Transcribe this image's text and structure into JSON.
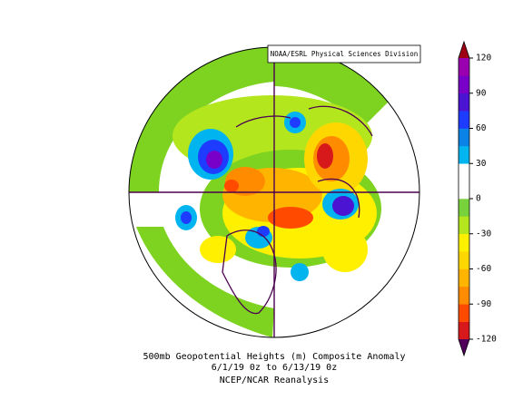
{
  "attribution": "NOAA/ESRL Physical Sciences Division",
  "caption": {
    "line1": "500mb Geopotential Heights (m)   Composite Anomaly",
    "line2": "6/1/19 0z  to 6/13/19 0z",
    "line3": "NCEP/NCAR Reanalysis"
  },
  "colorbar": {
    "lim": [
      -120,
      120
    ],
    "ticks": [
      120,
      90,
      60,
      30,
      0,
      -30,
      -60,
      -90,
      -120
    ],
    "colors": [
      "#d7191c",
      "#ff4a00",
      "#ff8c00",
      "#ffb400",
      "#ffd700",
      "#fff000",
      "#b4e61e",
      "#78d23c",
      "#ffffff",
      "#ffffff",
      "#00b4f0",
      "#0a82e6",
      "#1e3cff",
      "#4a14d2",
      "#7800c8",
      "#9a00b0"
    ],
    "over_color": "#a00014",
    "under_color": "#50005a"
  }
}
